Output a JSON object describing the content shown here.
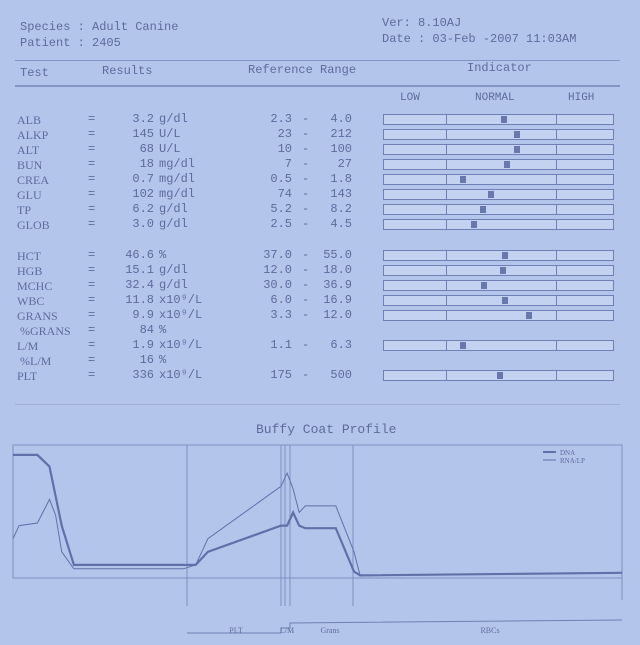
{
  "header": {
    "species": "Species : Adult Canine",
    "patient": "Patient : 2405",
    "version": "Ver: 8.10AJ",
    "date": "Date : 03-Feb -2007 11:03AM"
  },
  "columns": {
    "test": "Test",
    "results": "Results",
    "reference": "Reference Range",
    "indicator": "Indicator"
  },
  "indicator_labels": {
    "low": "LOW",
    "normal": "NORMAL",
    "high": "HIGH"
  },
  "rows": [
    {
      "test": "ALB",
      "value": "3.2",
      "unit": "g/dl",
      "low": "2.3",
      "high": "4.0"
    },
    {
      "test": "ALKP",
      "value": "145",
      "unit": "U/L",
      "low": "23",
      "high": "212"
    },
    {
      "test": "ALT",
      "value": "68",
      "unit": "U/L",
      "low": "10",
      "high": "100"
    },
    {
      "test": "BUN",
      "value": "18",
      "unit": "mg/dl",
      "low": "7",
      "high": "27"
    },
    {
      "test": "CREA",
      "value": "0.7",
      "unit": "mg/dl",
      "low": "0.5",
      "high": "1.8"
    },
    {
      "test": "GLU",
      "value": "102",
      "unit": "mg/dl",
      "low": "74",
      "high": "143"
    },
    {
      "test": "TP",
      "value": "6.2",
      "unit": "g/dl",
      "low": "5.2",
      "high": "8.2"
    },
    {
      "test": "GLOB",
      "value": "3.0",
      "unit": "g/dl",
      "low": "2.5",
      "high": "4.5"
    },
    {
      "test": "HCT",
      "value": "46.6",
      "unit": "%",
      "low": "37.0",
      "high": "55.0"
    },
    {
      "test": "HGB",
      "value": "15.1",
      "unit": "g/dl",
      "low": "12.0",
      "high": "18.0"
    },
    {
      "test": "MCHC",
      "value": "32.4",
      "unit": "g/dl",
      "low": "30.0",
      "high": "36.9"
    },
    {
      "test": "WBC",
      "value": "11.8",
      "unit": "x10⁹/L",
      "low": "6.0",
      "high": "16.9"
    },
    {
      "test": "GRANS",
      "value": "9.9",
      "unit": "x10⁹/L",
      "low": "3.3",
      "high": "12.0"
    },
    {
      "test": " %GRANS",
      "value": "84",
      "unit": "%",
      "low": "",
      "high": ""
    },
    {
      "test": "L/M",
      "value": "1.9",
      "unit": "x10⁹/L",
      "low": "1.1",
      "high": "6.3"
    },
    {
      "test": " %L/M",
      "value": "16",
      "unit": "%",
      "low": "",
      "high": ""
    },
    {
      "test": "PLT",
      "value": "336",
      "unit": "x10⁹/L",
      "low": "175",
      "high": "500"
    }
  ],
  "chart_data": {
    "type": "line",
    "title": "Buffy Coat Profile",
    "legend": [
      "DNA",
      "RNA/LP"
    ],
    "legend_position": "top-right",
    "regions": [
      "PLT",
      "L/M",
      "Grans",
      "RBCs"
    ],
    "series": [
      {
        "name": "DNA",
        "x": [
          0,
          4,
          6,
          8,
          10,
          28,
          30,
          32,
          44,
          45,
          46,
          47,
          48,
          53,
          56,
          57,
          100
        ],
        "y": [
          94,
          94,
          85,
          40,
          10,
          10,
          10,
          20,
          40,
          40,
          50,
          40,
          38,
          38,
          5,
          2,
          4
        ]
      },
      {
        "name": "RNA/LP",
        "x": [
          0,
          1,
          4,
          6,
          7,
          8,
          10,
          28,
          30,
          32,
          44,
          45,
          46,
          47,
          48,
          53,
          56,
          57,
          100
        ],
        "y": [
          30,
          40,
          42,
          60,
          48,
          20,
          7,
          7,
          10,
          30,
          70,
          80,
          68,
          50,
          55,
          55,
          20,
          2,
          4
        ]
      }
    ]
  }
}
